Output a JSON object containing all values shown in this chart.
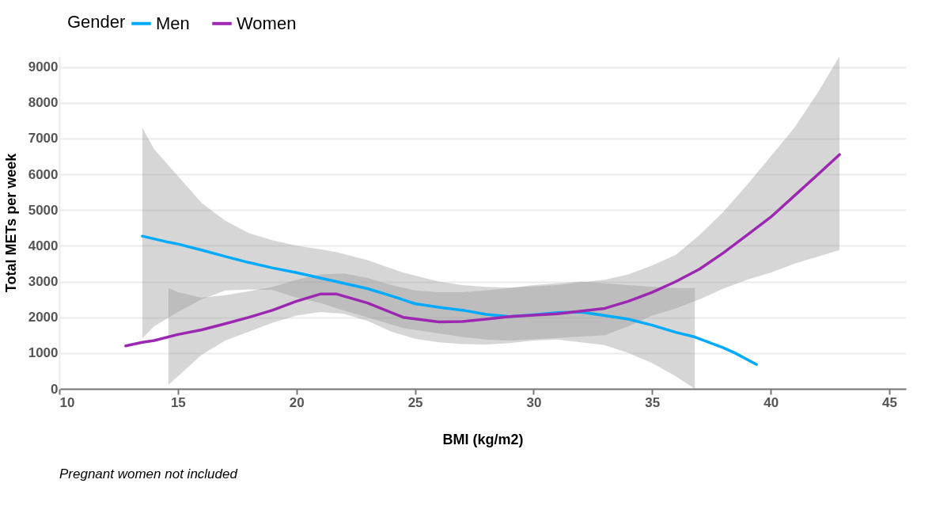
{
  "chart_data": {
    "type": "line",
    "xlabel": "BMI (kg/m2)",
    "ylabel": "Total METs per week",
    "legend_title": "Gender",
    "legend": "top",
    "grid": "y",
    "marker": "none",
    "line_style": "solid",
    "xlim": [
      10,
      45.7
    ],
    "xticks": [
      10,
      15,
      20,
      25,
      30,
      35,
      40,
      45
    ],
    "ylim": [
      0,
      9300
    ],
    "yticks": [
      0,
      1000,
      2000,
      3000,
      4000,
      5000,
      6000,
      7000,
      8000,
      9000
    ],
    "annotations": [
      "Pregnant women not included"
    ],
    "series": [
      {
        "name": "Men",
        "color": "#00aaff",
        "x": [
          13.5,
          14.6,
          15,
          16,
          17,
          18,
          19,
          20,
          21,
          22,
          23,
          24,
          25,
          26,
          27,
          28,
          29,
          30,
          31,
          32,
          33,
          34,
          35,
          36,
          36.8,
          37,
          38,
          38.5,
          39.4
        ],
        "values": [
          4270,
          4100,
          4050,
          3880,
          3700,
          3530,
          3380,
          3250,
          3100,
          2950,
          2800,
          2600,
          2380,
          2280,
          2200,
          2080,
          2020,
          2070,
          2130,
          2150,
          2050,
          1950,
          1780,
          1580,
          1450,
          1400,
          1150,
          1000,
          680
        ],
        "lower": [
          null,
          110,
          350,
          950,
          1350,
          1600,
          1850,
          2050,
          2150,
          2100,
          1900,
          1600,
          1400,
          1300,
          1250,
          1240,
          1280,
          1350,
          1380,
          1300,
          1220,
          1000,
          720,
          350,
          0,
          null,
          null,
          null,
          null
        ],
        "upper": [
          null,
          2820,
          2700,
          2550,
          2620,
          2730,
          2850,
          3050,
          3200,
          3230,
          3100,
          2900,
          2750,
          2700,
          2700,
          2750,
          2820,
          2900,
          2950,
          3000,
          2950,
          2900,
          2850,
          2820,
          2820,
          null,
          null,
          null,
          null
        ]
      },
      {
        "name": "Women",
        "color": "#9c27b0",
        "x": [
          12.8,
          13.5,
          14,
          15,
          16,
          17,
          18,
          19,
          20,
          21,
          21.7,
          23,
          24.5,
          26,
          27,
          28,
          29,
          31,
          33,
          34,
          35,
          36,
          37,
          38,
          39,
          40,
          41,
          42,
          42.9
        ],
        "values": [
          1200,
          1300,
          1350,
          1520,
          1650,
          1820,
          2000,
          2200,
          2450,
          2650,
          2650,
          2400,
          2000,
          1870,
          1880,
          1950,
          2020,
          2100,
          2250,
          2450,
          2700,
          3000,
          3350,
          3800,
          4300,
          4800,
          5400,
          6000,
          6550
        ],
        "lower": [
          null,
          1410,
          1750,
          2150,
          2500,
          2750,
          2780,
          2760,
          2550,
          2400,
          2250,
          2000,
          1700,
          1550,
          1450,
          1380,
          1350,
          1420,
          1500,
          1750,
          2050,
          2250,
          2500,
          2800,
          3050,
          3250,
          3500,
          3700,
          3880
        ],
        "upper": [
          null,
          7300,
          6700,
          5950,
          5200,
          4700,
          4350,
          4150,
          4000,
          3900,
          3820,
          3600,
          3250,
          3000,
          2900,
          2850,
          2830,
          2900,
          3050,
          3200,
          3450,
          3750,
          4300,
          4950,
          5700,
          6500,
          7300,
          8300,
          9300
        ]
      }
    ]
  }
}
